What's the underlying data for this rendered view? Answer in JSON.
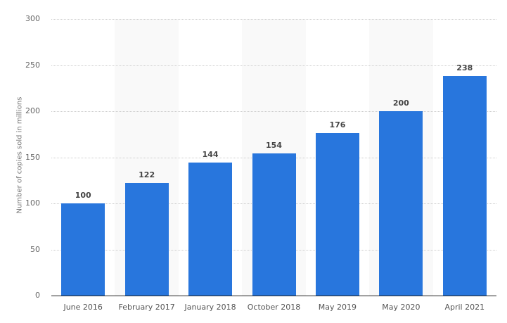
{
  "chart_data": {
    "type": "bar",
    "title": "",
    "xlabel": "",
    "ylabel": "Number of copies sold in millions",
    "categories": [
      "June 2016",
      "February 2017",
      "January 2018",
      "October 2018",
      "May 2019",
      "May 2020",
      "April 2021"
    ],
    "values": [
      100,
      122,
      144,
      154,
      176,
      200,
      238
    ],
    "ylim": [
      0,
      300
    ],
    "yticks": [
      0,
      50,
      100,
      150,
      200,
      250,
      300
    ],
    "grid": true,
    "bar_color": "#2876dd",
    "data_labels": true
  }
}
